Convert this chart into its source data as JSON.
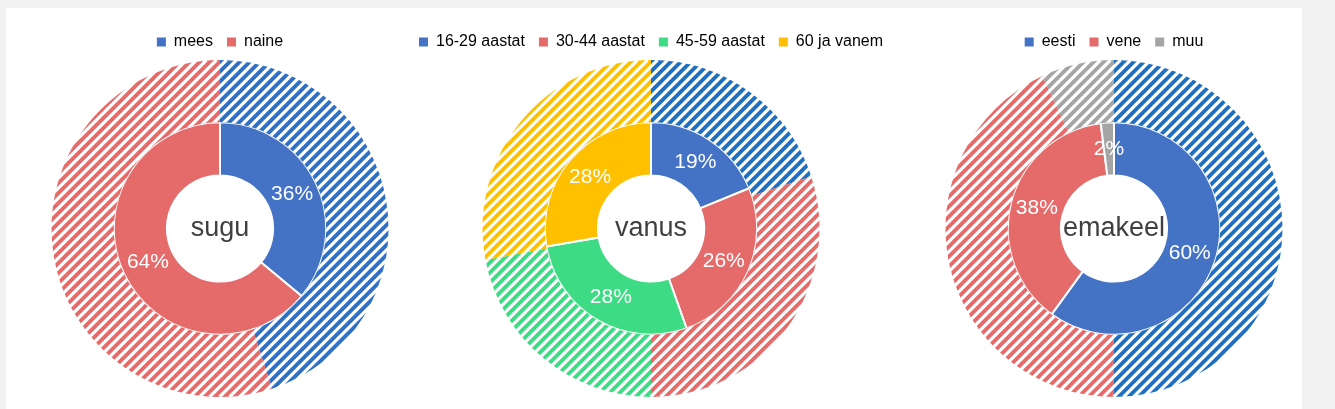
{
  "chart_data": [
    {
      "type": "donut",
      "title": "sugu",
      "categories": [
        "mees",
        "naine"
      ],
      "legend": "top",
      "series": [
        {
          "values": [
            36,
            64
          ],
          "colors": [
            "#4472c4",
            "#e56b6b"
          ],
          "value_labels": [
            "36%",
            "64%"
          ]
        },
        {
          "values": [
            45,
            55
          ],
          "colors": [
            "#2f6fc4",
            "#e56b6b"
          ]
        }
      ]
    },
    {
      "type": "donut",
      "title": "vanus",
      "categories": [
        "16-29 aastat",
        "30-44 aastat",
        "45-59 aastat",
        "60 ja vanem"
      ],
      "legend": "top",
      "series": [
        {
          "values": [
            19,
            26,
            28,
            28
          ],
          "colors": [
            "#4472c4",
            "#e56b6b",
            "#3ddc84",
            "#ffc000"
          ],
          "value_labels": [
            "19%",
            "26%",
            "28%",
            "28%"
          ]
        },
        {
          "values": [
            20,
            30,
            22,
            28
          ],
          "colors": [
            "#1f6fc0",
            "#e56b6b",
            "#3ddc84",
            "#ffc000"
          ]
        }
      ]
    },
    {
      "type": "donut",
      "title": "emakeel",
      "categories": [
        "eesti",
        "vene",
        "muu"
      ],
      "legend": "top",
      "series": [
        {
          "values": [
            60,
            38,
            2
          ],
          "colors": [
            "#4472c4",
            "#e56b6b",
            "#a5a5a5"
          ],
          "value_labels": [
            "60%",
            "38%",
            "2%"
          ]
        },
        {
          "values": [
            50,
            43,
            7
          ],
          "colors": [
            "#1f6fc0",
            "#e56b6b",
            "#a5a5a5"
          ]
        }
      ]
    }
  ]
}
